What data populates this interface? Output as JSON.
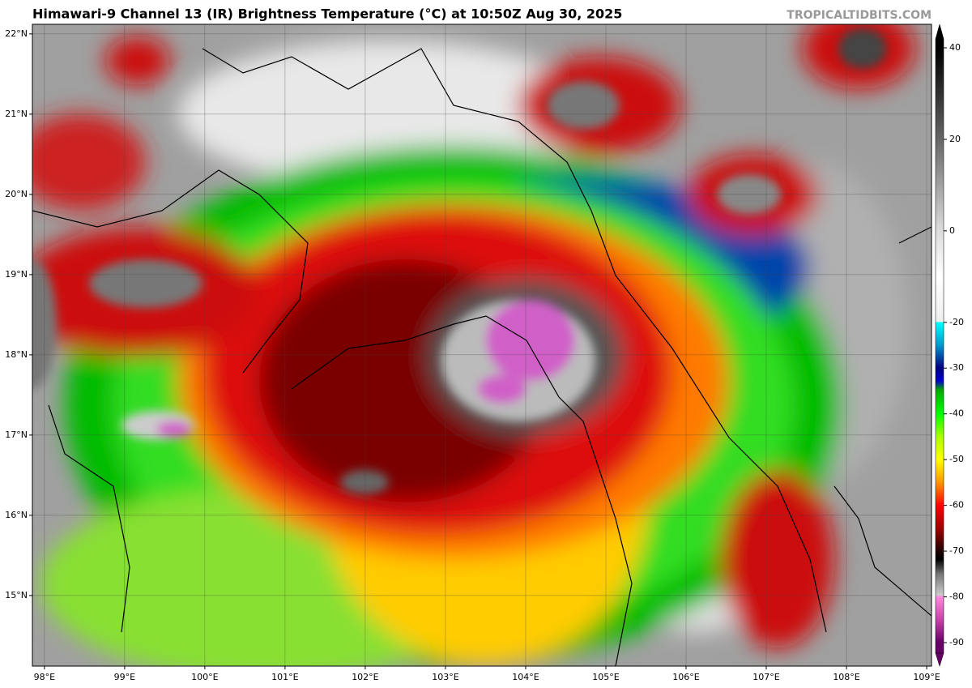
{
  "header": {
    "title": "Himawari-9 Channel 13 (IR) Brightness Temperature (°C) at 10:50Z Aug 30, 2025",
    "source": "TROPICALTIDBITS.COM"
  },
  "map": {
    "xlim": [
      97.85,
      109.06
    ],
    "ylim": [
      14.12,
      22.12
    ],
    "lon_ticks": [
      {
        "value": 98,
        "label": "98°E"
      },
      {
        "value": 99,
        "label": "99°E"
      },
      {
        "value": 100,
        "label": "100°E"
      },
      {
        "value": 101,
        "label": "101°E"
      },
      {
        "value": 102,
        "label": "102°E"
      },
      {
        "value": 103,
        "label": "103°E"
      },
      {
        "value": 104,
        "label": "104°E"
      },
      {
        "value": 105,
        "label": "105°E"
      },
      {
        "value": 106,
        "label": "106°E"
      },
      {
        "value": 107,
        "label": "107°E"
      },
      {
        "value": 108,
        "label": "108°E"
      },
      {
        "value": 109,
        "label": "109°E"
      }
    ],
    "lat_ticks": [
      {
        "value": 22,
        "label": "22°N"
      },
      {
        "value": 21,
        "label": "21°N"
      },
      {
        "value": 20,
        "label": "20°N"
      },
      {
        "value": 19,
        "label": "19°N"
      },
      {
        "value": 18,
        "label": "18°N"
      },
      {
        "value": 17,
        "label": "17°N"
      },
      {
        "value": 16,
        "label": "16°N"
      },
      {
        "value": 15,
        "label": "15°N"
      }
    ]
  },
  "colorbar": {
    "lim": [
      -90,
      40
    ],
    "ticks": [
      40,
      20,
      0,
      -20,
      -30,
      -40,
      -50,
      -60,
      -70,
      -80,
      -90
    ]
  }
}
